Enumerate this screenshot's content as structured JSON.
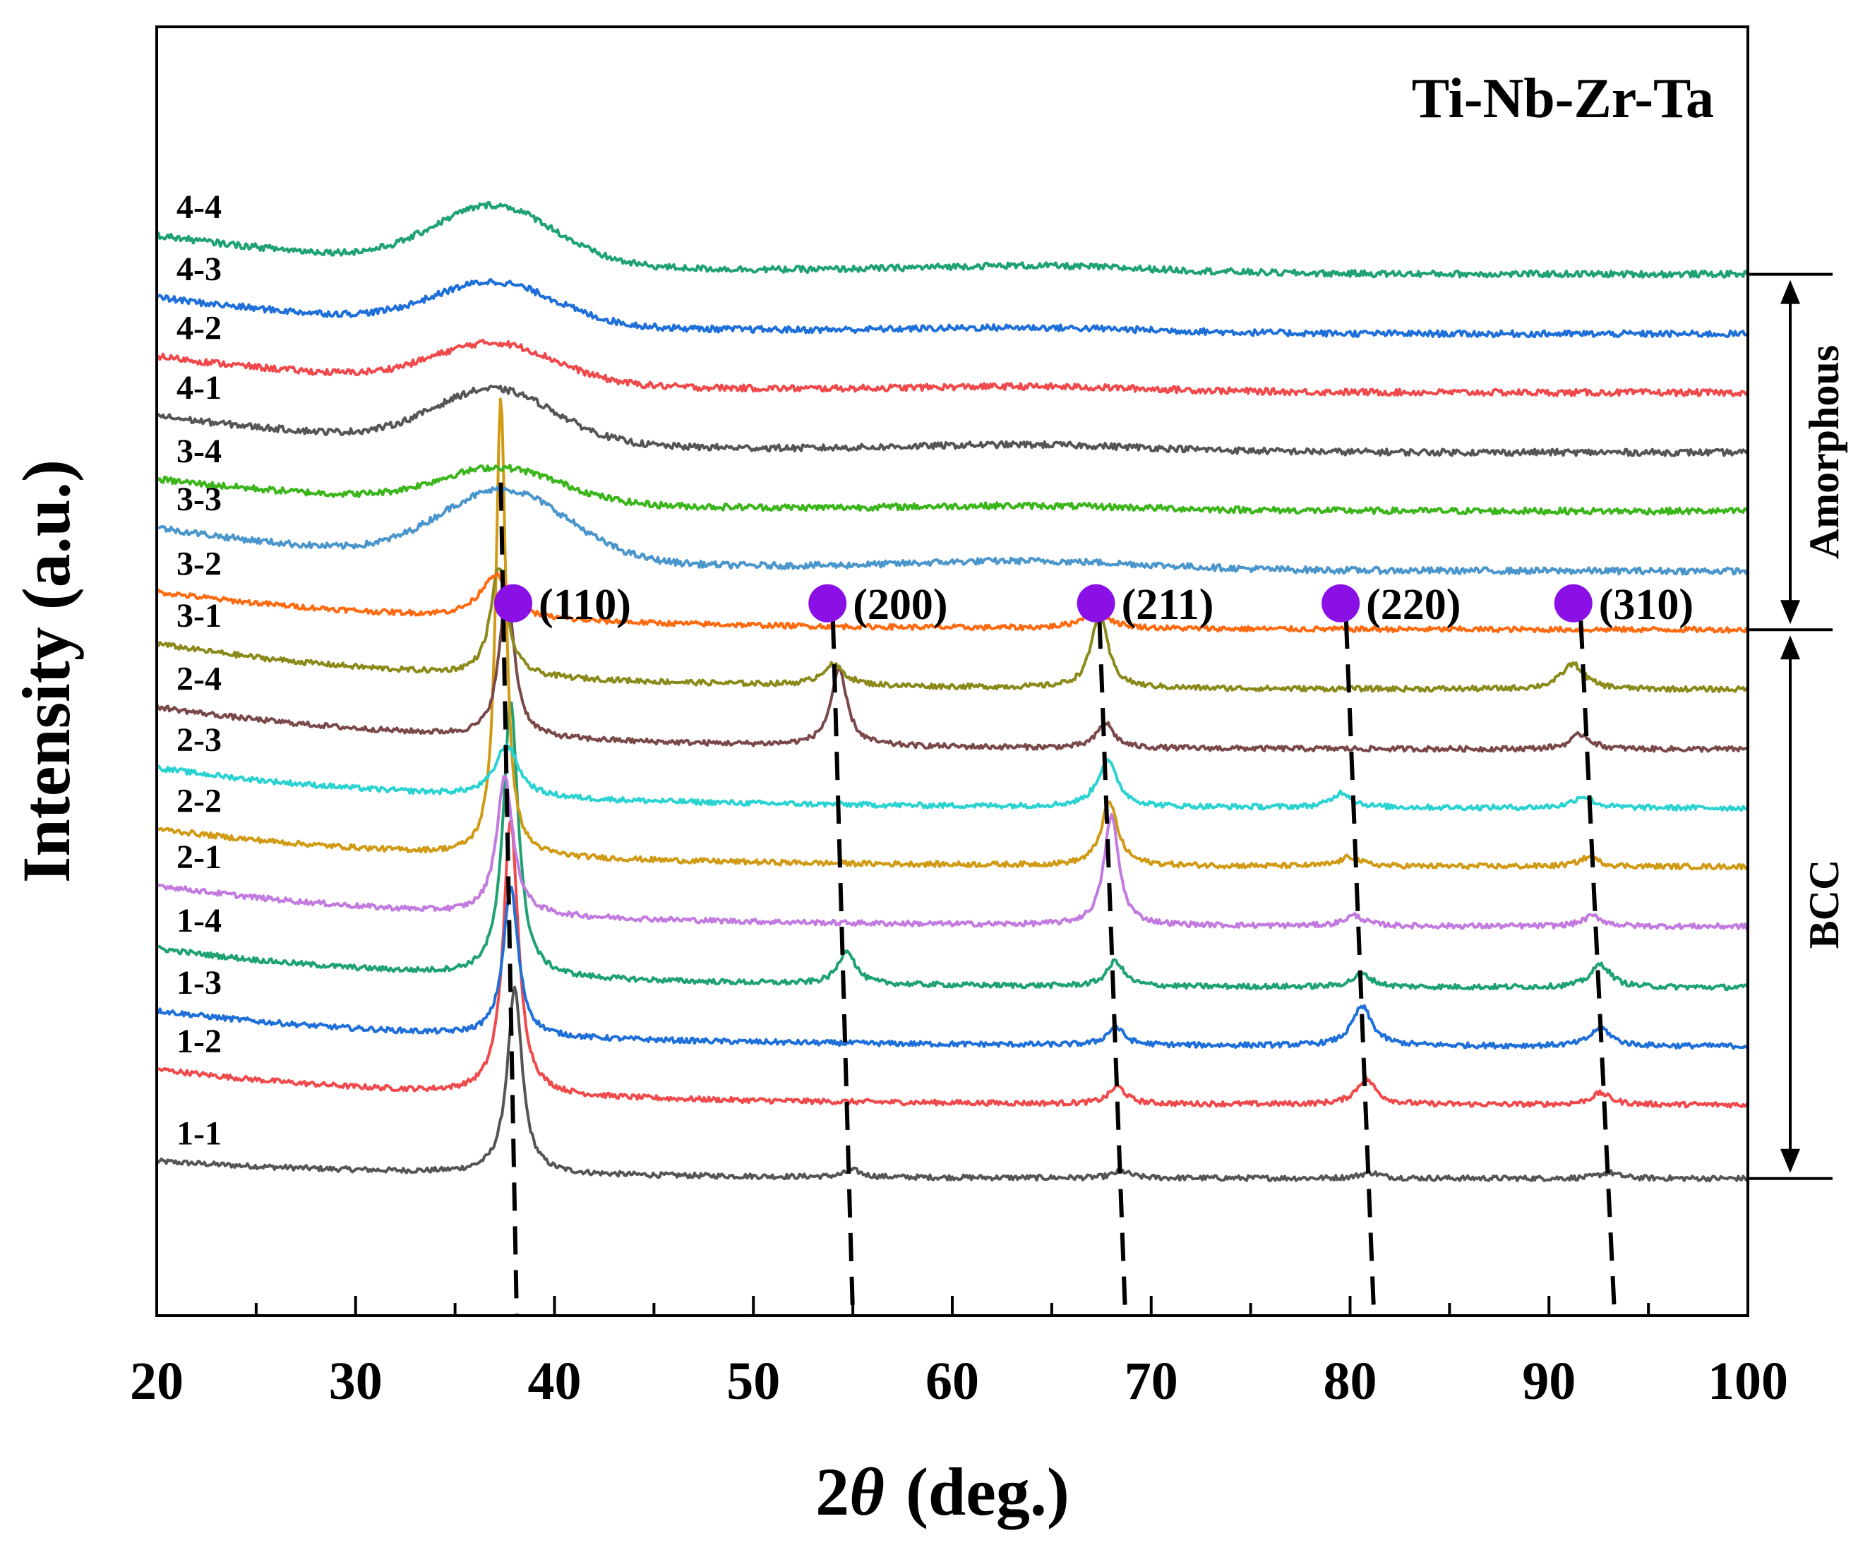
{
  "chart_data": {
    "type": "line",
    "title": "Ti-Nb-Zr-Ta",
    "xlabel_prefix": "2",
    "xlabel_symbol": "θ",
    "xlabel_suffix": "(deg.)",
    "ylabel": "Intensity (a.u.)",
    "xlim": [
      20,
      100
    ],
    "xticks": [
      20,
      30,
      40,
      50,
      60,
      70,
      80,
      90,
      100
    ],
    "xtick_labels": [
      "20",
      "30",
      "40",
      "50",
      "60",
      "70",
      "80",
      "90",
      "100"
    ],
    "ylim": [
      0,
      100
    ],
    "series": [
      {
        "name": "1-1",
        "color": "#555555",
        "baseline": 4,
        "start": 5.5,
        "peaks": [
          [
            38.0,
            16,
            0.45
          ],
          [
            55.0,
            0.6,
            0.5
          ],
          [
            68.5,
            0.6,
            0.5
          ],
          [
            81.0,
            0.5,
            0.6
          ],
          [
            93.0,
            0.5,
            0.6
          ]
        ]
      },
      {
        "name": "1-2",
        "color": "#f0494b",
        "baseline": 10.4,
        "start": 13.5,
        "peaks": [
          [
            37.8,
            24,
            0.45
          ],
          [
            68.3,
            1.5,
            0.5
          ],
          [
            80.8,
            2.2,
            0.6
          ],
          [
            92.6,
            1.0,
            0.6
          ]
        ]
      },
      {
        "name": "1-3",
        "color": "#1e6fd9",
        "baseline": 15.5,
        "start": 18.6,
        "peaks": [
          [
            37.8,
            13,
            0.45
          ],
          [
            68.2,
            1.6,
            0.5
          ],
          [
            80.6,
            3.4,
            0.6
          ],
          [
            92.6,
            1.6,
            0.6
          ]
        ]
      },
      {
        "name": "1-4",
        "color": "#1ea272",
        "baseline": 20.6,
        "start": 24.0,
        "peaks": [
          [
            37.8,
            24,
            0.45
          ],
          [
            54.7,
            3.0,
            0.5
          ],
          [
            68.2,
            2.2,
            0.5
          ],
          [
            80.6,
            1.1,
            0.6
          ],
          [
            92.6,
            2.0,
            0.6
          ]
        ]
      },
      {
        "name": "2-1",
        "color": "#c27ae0",
        "baseline": 25.9,
        "start": 29.5,
        "peaks": [
          [
            37.5,
            12,
            0.5
          ],
          [
            68.0,
            9.5,
            0.45
          ],
          [
            80.2,
            0.9,
            0.6
          ],
          [
            92.2,
            0.9,
            0.6
          ]
        ]
      },
      {
        "name": "2-2",
        "color": "#d19a14",
        "baseline": 31.1,
        "start": 34.4,
        "peaks": [
          [
            37.3,
            40,
            0.3
          ],
          [
            67.9,
            5.5,
            0.5
          ],
          [
            80.0,
            0.8,
            0.6
          ],
          [
            92.0,
            0.8,
            0.6
          ]
        ]
      },
      {
        "name": "2-3",
        "color": "#2ad2d2",
        "baseline": 36.2,
        "start": 39.7,
        "peaks": [
          [
            37.6,
            4.5,
            0.7
          ],
          [
            67.8,
            4.0,
            0.6
          ],
          [
            79.6,
            1.3,
            0.6
          ],
          [
            91.7,
            1.0,
            0.6
          ]
        ]
      },
      {
        "name": "2-4",
        "color": "#7a4848",
        "baseline": 41.3,
        "start": 45.0,
        "peaks": [
          [
            37.6,
            13,
            0.45
          ],
          [
            54.3,
            6.5,
            0.5
          ],
          [
            67.7,
            2.2,
            0.5
          ],
          [
            91.6,
            1.3,
            0.6
          ]
        ]
      },
      {
        "name": "3-1",
        "color": "#8a8a1a",
        "baseline": 46.5,
        "start": 50.5,
        "peaks": [
          [
            37.2,
            9.5,
            0.5
          ],
          [
            54.0,
            1.8,
            0.7
          ],
          [
            67.4,
            6.5,
            0.5
          ],
          [
            91.2,
            2.2,
            0.7
          ]
        ]
      },
      {
        "name": "3-2",
        "color": "#ff6a10",
        "baseline": 51.7,
        "start": 55.0,
        "peaks": [
          [
            37.0,
            3.8,
            0.9
          ],
          [
            67.2,
            1.5,
            0.8
          ]
        ]
      },
      {
        "name": "3-3",
        "color": "#4a96cc",
        "baseline": 56.8,
        "amorph": [
          37.5,
          6.0,
          3.2
        ],
        "start": 60.6
      },
      {
        "name": "3-4",
        "color": "#3ab51a",
        "baseline": 62.0,
        "amorph": [
          37.3,
          3.0,
          3.0
        ],
        "start": 64.8
      },
      {
        "name": "4-1",
        "color": "#555555",
        "baseline": 67.1,
        "amorph": [
          37.0,
          4.6,
          3.0
        ],
        "start": 70.3
      },
      {
        "name": "4-2",
        "color": "#f0494b",
        "baseline": 72.3,
        "amorph": [
          37.0,
          3.4,
          3.0
        ],
        "start": 75.5
      },
      {
        "name": "4-3",
        "color": "#1e6fd9",
        "baseline": 77.4,
        "amorph": [
          37.0,
          3.6,
          3.0
        ],
        "start": 80.6
      },
      {
        "name": "4-4",
        "color": "#1ea272",
        "baseline": 82.6,
        "amorph": [
          37.0,
          5.0,
          3.0
        ],
        "start": 86.0
      }
    ],
    "guides": [
      {
        "x_top": 37.3,
        "x_bottom": 38.1,
        "y_top": 64.5,
        "y_bottom": 0
      },
      {
        "x_top": 54.0,
        "x_bottom": 55.0,
        "y_top": 52.5,
        "y_bottom": 0
      },
      {
        "x_top": 67.4,
        "x_bottom": 68.7,
        "y_top": 52.5,
        "y_bottom": 0
      },
      {
        "x_top": 79.8,
        "x_bottom": 81.2,
        "y_top": 52.5,
        "y_bottom": 0
      },
      {
        "x_top": 91.6,
        "x_bottom": 93.3,
        "y_top": 52.5,
        "y_bottom": 0
      }
    ],
    "peak_annotations": [
      {
        "label": "(110)",
        "x": 39.7
      },
      {
        "label": "(200)",
        "x": 55.5
      },
      {
        "label": "(211)",
        "x": 69.0
      },
      {
        "label": "(220)",
        "x": 81.3
      },
      {
        "label": "(310)",
        "x": 93.0
      }
    ],
    "marker_color": "#8b10e6",
    "phase_regions": [
      {
        "label": "Amorphous",
        "y_from": 51.7,
        "y_to": 82.6
      },
      {
        "label": "BCC",
        "y_from": 4.0,
        "y_to": 51.7
      }
    ]
  }
}
